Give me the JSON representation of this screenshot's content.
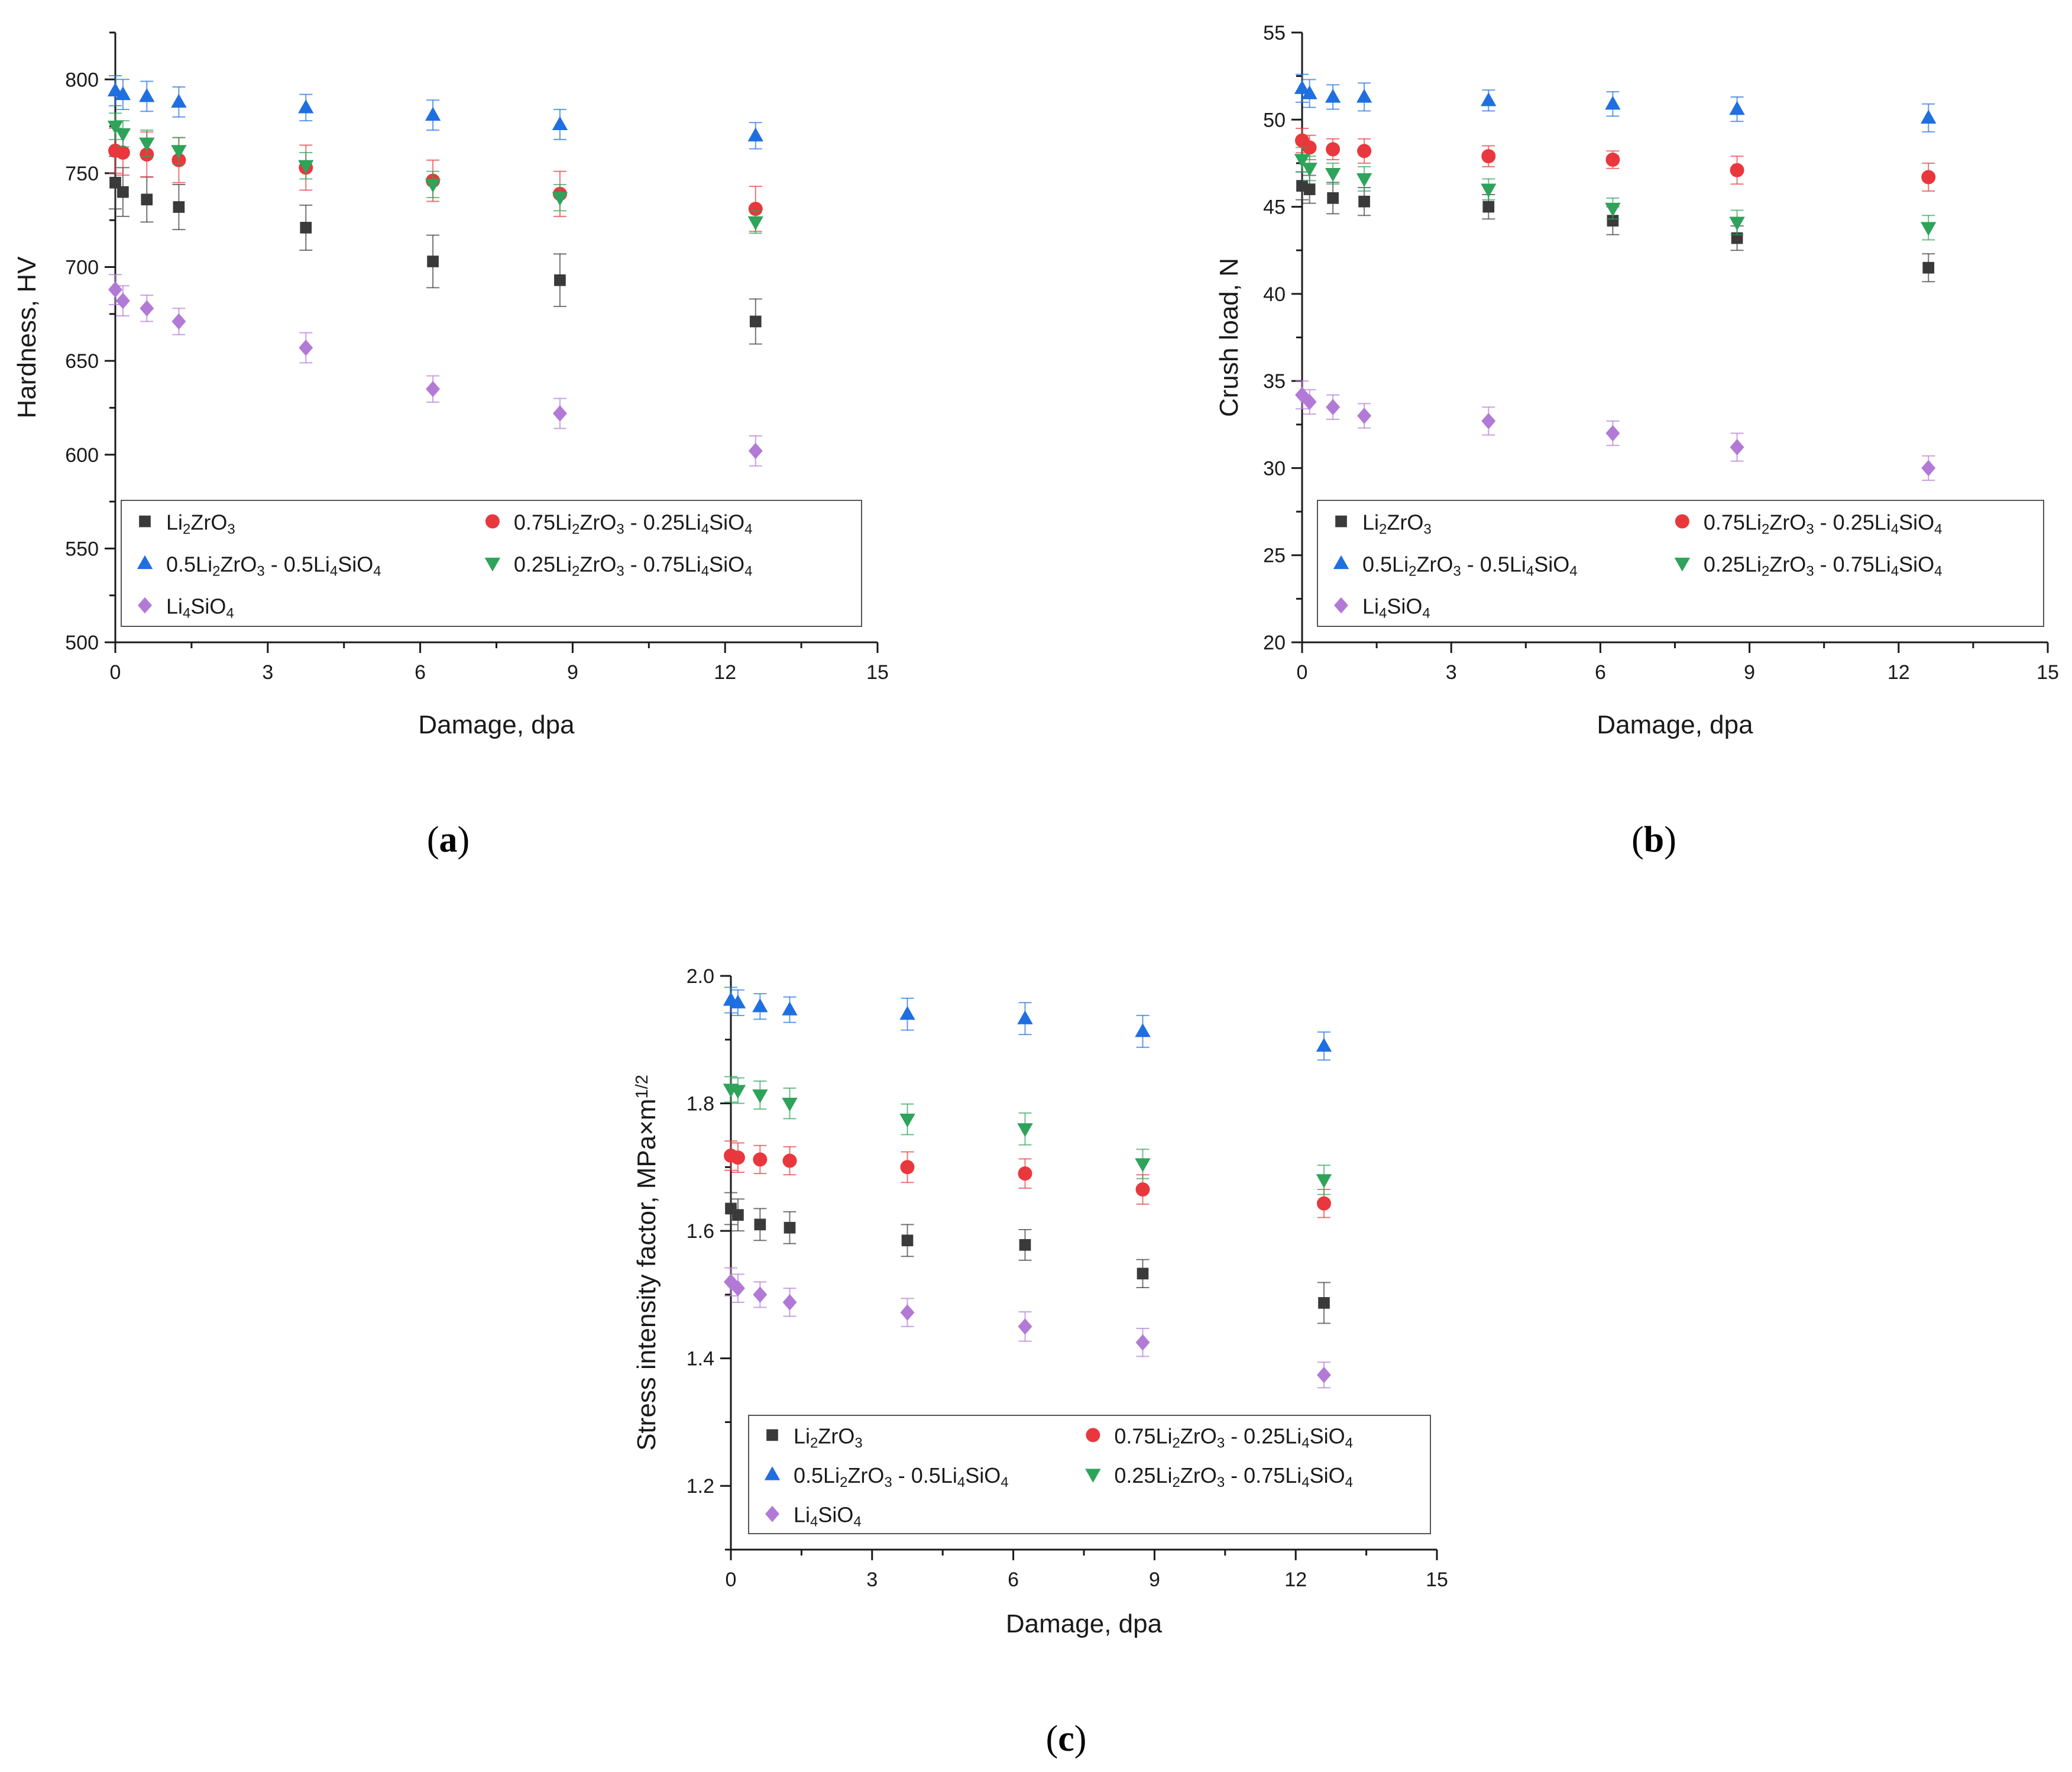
{
  "colors": {
    "Li2ZrO3": "#3a3a3a",
    "0.75Li2ZrO3-0.25Li4SiO4": "#e8383d",
    "0.5Li2ZrO3-0.5Li4SiO4": "#1f6fe0",
    "0.25Li2ZrO3-0.75Li4SiO4": "#2ea35a",
    "Li4SiO4": "#b27ad6",
    "axis": "#1a1a1a",
    "legend_border": "#555555"
  },
  "chart_data": [
    {
      "id": "a",
      "type": "scatter",
      "panel_label": {
        "open": "(",
        "letter": "a",
        "close": ")"
      },
      "xlabel": "Damage, dpa",
      "ylabel": "Hardness, HV",
      "xlim": [
        0,
        15
      ],
      "ylim": [
        500,
        825
      ],
      "xticks": [
        0,
        3,
        6,
        9,
        12,
        15
      ],
      "xtick_labels": [
        "0",
        "3",
        "6",
        "9",
        "12",
        "15"
      ],
      "yticks": [
        500,
        550,
        600,
        650,
        700,
        750,
        800
      ],
      "ytick_labels": [
        "500",
        "550",
        "600",
        "650",
        "700",
        "750",
        "800"
      ],
      "x": [
        0.0,
        0.15,
        0.62,
        1.25,
        3.75,
        6.25,
        8.75,
        12.6
      ],
      "series": [
        {
          "key": "Li2ZrO3",
          "marker": "square",
          "values": [
            745,
            740,
            736,
            732,
            721,
            703,
            693,
            671
          ],
          "err": [
            14,
            13,
            12,
            12,
            12,
            14,
            14,
            12
          ]
        },
        {
          "key": "0.75Li2ZrO3-0.25Li4SiO4",
          "marker": "circle",
          "values": [
            762,
            761,
            760,
            757,
            753,
            746,
            739,
            731
          ],
          "err": [
            12,
            12,
            12,
            12,
            12,
            11,
            12,
            12
          ]
        },
        {
          "key": "0.5Li2ZrO3-0.5Li4SiO4",
          "marker": "triangle-up",
          "values": [
            794,
            792,
            791,
            788,
            785,
            781,
            776,
            770
          ],
          "err": [
            8,
            8,
            8,
            8,
            7,
            8,
            8,
            7
          ]
        },
        {
          "key": "0.25Li2ZrO3-0.75Li4SiO4",
          "marker": "triangle-down",
          "values": [
            775,
            771,
            766,
            762,
            754,
            744,
            737,
            724
          ],
          "err": [
            7,
            7,
            7,
            7,
            7,
            7,
            7,
            6
          ]
        },
        {
          "key": "Li4SiO4",
          "marker": "diamond",
          "values": [
            688,
            682,
            678,
            671,
            657,
            635,
            622,
            602
          ],
          "err": [
            8,
            8,
            7,
            7,
            8,
            7,
            8,
            8
          ]
        }
      ],
      "legend": [
        {
          "key": "Li2ZrO3",
          "parts": [
            [
              "Li",
              ""
            ],
            [
              "2",
              "sub"
            ],
            [
              "ZrO",
              ""
            ],
            [
              "3",
              "sub"
            ]
          ]
        },
        {
          "key": "0.75Li2ZrO3-0.25Li4SiO4",
          "parts": [
            [
              "0.75Li",
              ""
            ],
            [
              "2",
              "sub"
            ],
            [
              "ZrO",
              ""
            ],
            [
              "3",
              "sub"
            ],
            [
              " - 0.25Li",
              ""
            ],
            [
              "4",
              "sub"
            ],
            [
              "SiO",
              ""
            ],
            [
              "4",
              "sub"
            ]
          ]
        },
        {
          "key": "0.5Li2ZrO3-0.5Li4SiO4",
          "parts": [
            [
              "0.5Li",
              ""
            ],
            [
              "2",
              "sub"
            ],
            [
              "ZrO",
              ""
            ],
            [
              "3",
              "sub"
            ],
            [
              " - 0.5Li",
              ""
            ],
            [
              "4",
              "sub"
            ],
            [
              "SiO",
              ""
            ],
            [
              "4",
              "sub"
            ]
          ]
        },
        {
          "key": "0.25Li2ZrO3-0.75Li4SiO4",
          "parts": [
            [
              "0.25Li",
              ""
            ],
            [
              "2",
              "sub"
            ],
            [
              "ZrO",
              ""
            ],
            [
              "3",
              "sub"
            ],
            [
              " - 0.75Li",
              ""
            ],
            [
              "4",
              "sub"
            ],
            [
              "SiO",
              ""
            ],
            [
              "4",
              "sub"
            ]
          ]
        },
        {
          "key": "Li4SiO4",
          "parts": [
            [
              "Li",
              ""
            ],
            [
              "4",
              "sub"
            ],
            [
              "SiO",
              ""
            ],
            [
              "4",
              "sub"
            ]
          ]
        }
      ]
    },
    {
      "id": "b",
      "type": "scatter",
      "panel_label": {
        "open": "(",
        "letter": "b",
        "close": ")"
      },
      "xlabel": "Damage, dpa",
      "ylabel": "Crush load, N",
      "xlim": [
        0,
        15
      ],
      "ylim": [
        20,
        55
      ],
      "xticks": [
        0,
        3,
        6,
        9,
        12,
        15
      ],
      "xtick_labels": [
        "0",
        "3",
        "6",
        "9",
        "12",
        "15"
      ],
      "yticks": [
        20,
        25,
        30,
        35,
        40,
        45,
        50,
        55
      ],
      "ytick_labels": [
        "20",
        "25",
        "30",
        "35",
        "40",
        "45",
        "50",
        "55"
      ],
      "x": [
        0.0,
        0.15,
        0.62,
        1.25,
        3.75,
        6.25,
        8.75,
        12.6
      ],
      "series": [
        {
          "key": "Li2ZrO3",
          "marker": "square",
          "values": [
            46.2,
            46.0,
            45.5,
            45.3,
            45.0,
            44.2,
            43.2,
            41.5
          ],
          "err": [
            0.8,
            0.8,
            0.9,
            0.8,
            0.7,
            0.8,
            0.7,
            0.8
          ]
        },
        {
          "key": "0.75Li2ZrO3-0.25Li4SiO4",
          "marker": "circle",
          "values": [
            48.8,
            48.4,
            48.3,
            48.2,
            47.9,
            47.7,
            47.1,
            46.7
          ],
          "err": [
            0.7,
            0.7,
            0.6,
            0.7,
            0.6,
            0.5,
            0.8,
            0.8
          ]
        },
        {
          "key": "0.5Li2ZrO3-0.5Li4SiO4",
          "marker": "triangle-up",
          "values": [
            51.8,
            51.5,
            51.3,
            51.3,
            51.1,
            50.9,
            50.6,
            50.1
          ],
          "err": [
            0.8,
            0.8,
            0.7,
            0.8,
            0.6,
            0.7,
            0.7,
            0.8
          ]
        },
        {
          "key": "0.25Li2ZrO3-0.75Li4SiO4",
          "marker": "triangle-down",
          "values": [
            47.7,
            47.2,
            46.9,
            46.6,
            46.0,
            44.9,
            44.1,
            43.8
          ],
          "err": [
            0.7,
            0.7,
            0.6,
            0.7,
            0.6,
            0.6,
            0.7,
            0.7
          ]
        },
        {
          "key": "Li4SiO4",
          "marker": "diamond",
          "values": [
            34.2,
            33.8,
            33.5,
            33.0,
            32.7,
            32.0,
            31.2,
            30.0
          ],
          "err": [
            0.8,
            0.7,
            0.7,
            0.7,
            0.8,
            0.7,
            0.8,
            0.7
          ]
        }
      ],
      "legend": [
        {
          "key": "Li2ZrO3",
          "parts": [
            [
              "Li",
              ""
            ],
            [
              "2",
              "sub"
            ],
            [
              "ZrO",
              ""
            ],
            [
              "3",
              "sub"
            ]
          ]
        },
        {
          "key": "0.75Li2ZrO3-0.25Li4SiO4",
          "parts": [
            [
              "0.75Li",
              ""
            ],
            [
              "2",
              "sub"
            ],
            [
              "ZrO",
              ""
            ],
            [
              "3",
              "sub"
            ],
            [
              " - 0.25Li",
              ""
            ],
            [
              "4",
              "sub"
            ],
            [
              "SiO",
              ""
            ],
            [
              "4",
              "sub"
            ]
          ]
        },
        {
          "key": "0.5Li2ZrO3-0.5Li4SiO4",
          "parts": [
            [
              "0.5Li",
              ""
            ],
            [
              "2",
              "sub"
            ],
            [
              "ZrO",
              ""
            ],
            [
              "3",
              "sub"
            ],
            [
              " - 0.5Li",
              ""
            ],
            [
              "4",
              "sub"
            ],
            [
              "SiO",
              ""
            ],
            [
              "4",
              "sub"
            ]
          ]
        },
        {
          "key": "0.25Li2ZrO3-0.75Li4SiO4",
          "parts": [
            [
              "0.25Li",
              ""
            ],
            [
              "2",
              "sub"
            ],
            [
              "ZrO",
              ""
            ],
            [
              "3",
              "sub"
            ],
            [
              " - 0.75Li",
              ""
            ],
            [
              "4",
              "sub"
            ],
            [
              "SiO",
              ""
            ],
            [
              "4",
              "sub"
            ]
          ]
        },
        {
          "key": "Li4SiO4",
          "parts": [
            [
              "Li",
              ""
            ],
            [
              "4",
              "sub"
            ],
            [
              "SiO",
              ""
            ],
            [
              "4",
              "sub"
            ]
          ]
        }
      ]
    },
    {
      "id": "c",
      "type": "scatter",
      "panel_label": {
        "open": "(",
        "letter": "c",
        "close": ")"
      },
      "xlabel": "Damage, dpa",
      "ylabel_parts": [
        [
          "Stress intensity factor, MPa×m",
          ""
        ],
        [
          "1/2",
          "sup"
        ]
      ],
      "xlim": [
        0,
        15
      ],
      "ylim": [
        1.1,
        2.0
      ],
      "xticks": [
        0,
        3,
        6,
        9,
        12,
        15
      ],
      "xtick_labels": [
        "0",
        "3",
        "6",
        "9",
        "12",
        "15"
      ],
      "yticks": [
        1.2,
        1.4,
        1.6,
        1.8,
        2.0
      ],
      "ytick_labels": [
        "1.2",
        "1.4",
        "1.6",
        "1.8",
        "2.0"
      ],
      "x": [
        0.0,
        0.15,
        0.62,
        1.25,
        3.75,
        6.25,
        8.75,
        12.6
      ],
      "series": [
        {
          "key": "Li2ZrO3",
          "marker": "square",
          "values": [
            1.635,
            1.625,
            1.61,
            1.605,
            1.585,
            1.578,
            1.533,
            1.487
          ],
          "err": [
            0.025,
            0.025,
            0.025,
            0.025,
            0.025,
            0.024,
            0.022,
            0.032
          ]
        },
        {
          "key": "0.75Li2ZrO3-0.25Li4SiO4",
          "marker": "circle",
          "values": [
            1.718,
            1.715,
            1.712,
            1.71,
            1.7,
            1.69,
            1.665,
            1.643
          ],
          "err": [
            0.023,
            0.023,
            0.022,
            0.022,
            0.024,
            0.023,
            0.023,
            0.022
          ]
        },
        {
          "key": "0.5Li2ZrO3-0.5Li4SiO4",
          "marker": "triangle-up",
          "values": [
            1.962,
            1.958,
            1.952,
            1.947,
            1.94,
            1.933,
            1.913,
            1.89
          ],
          "err": [
            0.02,
            0.02,
            0.02,
            0.02,
            0.025,
            0.025,
            0.025,
            0.022
          ]
        },
        {
          "key": "0.25Li2ZrO3-0.75Li4SiO4",
          "marker": "triangle-down",
          "values": [
            1.822,
            1.82,
            1.813,
            1.8,
            1.775,
            1.76,
            1.705,
            1.68
          ],
          "err": [
            0.02,
            0.02,
            0.022,
            0.024,
            0.024,
            0.025,
            0.023,
            0.023
          ]
        },
        {
          "key": "Li4SiO4",
          "marker": "diamond",
          "values": [
            1.52,
            1.51,
            1.5,
            1.488,
            1.472,
            1.45,
            1.425,
            1.374
          ],
          "err": [
            0.022,
            0.022,
            0.02,
            0.022,
            0.022,
            0.023,
            0.022,
            0.02
          ]
        }
      ],
      "legend": [
        {
          "key": "Li2ZrO3",
          "parts": [
            [
              "Li",
              ""
            ],
            [
              "2",
              "sub"
            ],
            [
              "ZrO",
              ""
            ],
            [
              "3",
              "sub"
            ]
          ]
        },
        {
          "key": "0.75Li2ZrO3-0.25Li4SiO4",
          "parts": [
            [
              "0.75Li",
              ""
            ],
            [
              "2",
              "sub"
            ],
            [
              "ZrO",
              ""
            ],
            [
              "3",
              "sub"
            ],
            [
              " - 0.25Li",
              ""
            ],
            [
              "4",
              "sub"
            ],
            [
              "SiO",
              ""
            ],
            [
              "4",
              "sub"
            ]
          ]
        },
        {
          "key": "0.5Li2ZrO3-0.5Li4SiO4",
          "parts": [
            [
              "0.5Li",
              ""
            ],
            [
              "2",
              "sub"
            ],
            [
              "ZrO",
              ""
            ],
            [
              "3",
              "sub"
            ],
            [
              " - 0.5Li",
              ""
            ],
            [
              "4",
              "sub"
            ],
            [
              "SiO",
              ""
            ],
            [
              "4",
              "sub"
            ]
          ]
        },
        {
          "key": "0.25Li2ZrO3-0.75Li4SiO4",
          "parts": [
            [
              "0.25Li",
              ""
            ],
            [
              "2",
              "sub"
            ],
            [
              "ZrO",
              ""
            ],
            [
              "3",
              "sub"
            ],
            [
              " - 0.75Li",
              ""
            ],
            [
              "4",
              "sub"
            ],
            [
              "SiO",
              ""
            ],
            [
              "4",
              "sub"
            ]
          ]
        },
        {
          "key": "Li4SiO4",
          "parts": [
            [
              "Li",
              ""
            ],
            [
              "4",
              "sub"
            ],
            [
              "SiO",
              ""
            ],
            [
              "4",
              "sub"
            ]
          ]
        }
      ]
    }
  ]
}
